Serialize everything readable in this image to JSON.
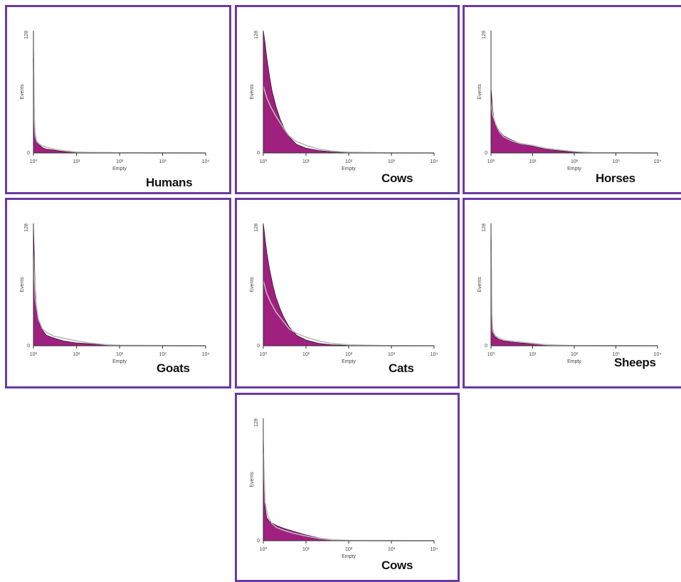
{
  "colors": {
    "border": "#6b3aa0",
    "fill": "#a0207f",
    "overlay": "#b8b8b8",
    "axis": "#333333"
  },
  "chart_data": [
    {
      "type": "area",
      "title": "Humans",
      "xlabel": "Empty",
      "ylabel": "Events",
      "xscale": "log",
      "xlim": [
        1,
        10000
      ],
      "ylim": [
        0,
        128
      ],
      "xticks": [
        "10⁰",
        "10¹",
        "10²",
        "10³",
        "10⁴"
      ],
      "yticks": [
        "0",
        "128"
      ],
      "series": [
        {
          "x": [
            1,
            1.05,
            1.1,
            1.2,
            1.4,
            1.7,
            2,
            3,
            4,
            6,
            10,
            20,
            100,
            10000
          ],
          "y": [
            116,
            40,
            20,
            12,
            8,
            5,
            4,
            3,
            2,
            1.2,
            0.8,
            0.5,
            0.2,
            0
          ]
        },
        {
          "x": [
            1,
            1.05,
            1.1,
            1.2,
            1.4,
            1.7,
            2,
            3,
            4,
            6,
            10,
            20,
            100,
            10000
          ],
          "y": [
            100,
            35,
            18,
            12,
            9,
            7,
            6,
            4,
            3,
            2,
            1,
            0.6,
            0.2,
            0
          ]
        }
      ]
    },
    {
      "type": "area",
      "title": "Cows",
      "xlabel": "Empty",
      "ylabel": "Events",
      "xscale": "log",
      "xlim": [
        1,
        10000
      ],
      "ylim": [
        0,
        128
      ],
      "xticks": [
        "10⁰",
        "10¹",
        "10²",
        "10³",
        "10⁴"
      ],
      "yticks": [
        "0",
        "128"
      ],
      "series": [
        {
          "x": [
            1,
            1.1,
            1.2,
            1.4,
            1.6,
            2,
            2.5,
            3,
            4,
            6,
            10,
            20,
            40,
            100,
            1000,
            10000
          ],
          "y": [
            128,
            115,
            100,
            80,
            65,
            48,
            35,
            27,
            17,
            9,
            5,
            2.5,
            1.2,
            0.5,
            0.1,
            0
          ]
        },
        {
          "x": [
            1,
            1.2,
            1.5,
            2,
            3,
            4,
            6,
            10,
            20,
            40,
            100,
            1000,
            10000
          ],
          "y": [
            70,
            58,
            48,
            38,
            26,
            18,
            12,
            8,
            4,
            2,
            0.8,
            0.1,
            0
          ]
        }
      ]
    },
    {
      "type": "area",
      "title": "Horses",
      "xlabel": "Empty",
      "ylabel": "Events",
      "xscale": "log",
      "xlim": [
        1,
        10000
      ],
      "ylim": [
        0,
        128
      ],
      "xticks": [
        "10⁰",
        "10¹",
        "10²",
        "10³",
        "10⁴"
      ],
      "yticks": [
        "0",
        "128"
      ],
      "series": [
        {
          "x": [
            1,
            1.1,
            1.2,
            1.5,
            2,
            3,
            5,
            10,
            20,
            50,
            100,
            300,
            10000
          ],
          "y": [
            68,
            45,
            32,
            24,
            18,
            14,
            10,
            7,
            4,
            2,
            1,
            0.3,
            0
          ]
        },
        {
          "x": [
            1,
            1.1,
            1.3,
            1.6,
            2,
            3,
            5,
            10,
            20,
            50,
            100,
            300,
            10000
          ],
          "y": [
            55,
            40,
            30,
            22,
            17,
            13,
            10,
            8,
            5,
            3,
            1.5,
            0.4,
            0
          ]
        }
      ]
    },
    {
      "type": "area",
      "title": "Goats",
      "xlabel": "Empty",
      "ylabel": "Events",
      "xscale": "log",
      "xlim": [
        1,
        10000
      ],
      "ylim": [
        0,
        128
      ],
      "xticks": [
        "10⁰",
        "10¹",
        "10²",
        "10³",
        "10⁴"
      ],
      "yticks": [
        "0",
        "128"
      ],
      "series": [
        {
          "x": [
            1,
            1.05,
            1.1,
            1.2,
            1.4,
            1.7,
            2,
            3,
            5,
            10,
            20,
            50,
            100,
            10000
          ],
          "y": [
            128,
            90,
            60,
            35,
            22,
            15,
            11,
            8,
            5,
            3,
            2,
            0.8,
            0.3,
            0
          ]
        },
        {
          "x": [
            1,
            1.1,
            1.3,
            1.6,
            2,
            3,
            5,
            10,
            20,
            50,
            100,
            10000
          ],
          "y": [
            95,
            50,
            28,
            18,
            14,
            10,
            8,
            5,
            3,
            1.2,
            0.5,
            0
          ]
        }
      ]
    },
    {
      "type": "area",
      "title": "Cats",
      "xlabel": "Empty",
      "ylabel": "Events",
      "xscale": "log",
      "xlim": [
        1,
        10000
      ],
      "ylim": [
        0,
        128
      ],
      "xticks": [
        "10⁰",
        "10¹",
        "10²",
        "10³",
        "10⁴"
      ],
      "yticks": [
        "0",
        "128"
      ],
      "series": [
        {
          "x": [
            1,
            1.1,
            1.2,
            1.4,
            1.7,
            2,
            2.5,
            3,
            4,
            6,
            10,
            20,
            40,
            100,
            1000,
            10000
          ],
          "y": [
            128,
            112,
            98,
            80,
            62,
            50,
            38,
            30,
            20,
            11,
            6,
            2.5,
            1,
            0.4,
            0.1,
            0
          ]
        },
        {
          "x": [
            1,
            1.2,
            1.5,
            2,
            3,
            4,
            6,
            10,
            20,
            40,
            100,
            1000,
            10000
          ],
          "y": [
            68,
            55,
            45,
            35,
            25,
            18,
            13,
            9,
            5,
            2.5,
            1,
            0.1,
            0
          ]
        }
      ]
    },
    {
      "type": "area",
      "title": "Sheeps",
      "xlabel": "Empty",
      "ylabel": "Events",
      "xscale": "log",
      "xlim": [
        1,
        10000
      ],
      "ylim": [
        0,
        128
      ],
      "xticks": [
        "10⁰",
        "10¹",
        "10²",
        "10³",
        "10⁴"
      ],
      "yticks": [
        "0",
        "128"
      ],
      "series": [
        {
          "x": [
            1,
            1.05,
            1.1,
            1.2,
            1.5,
            2,
            3,
            5,
            10,
            20,
            50,
            100,
            10000
          ],
          "y": [
            128,
            40,
            18,
            10,
            7,
            5,
            4,
            3,
            2,
            1,
            0.5,
            0.2,
            0
          ]
        },
        {
          "x": [
            1,
            1.05,
            1.1,
            1.3,
            1.6,
            2,
            3,
            5,
            10,
            20,
            50,
            100,
            10000
          ],
          "y": [
            110,
            35,
            15,
            10,
            8,
            6,
            5,
            4,
            2.5,
            1.2,
            0.5,
            0.2,
            0
          ]
        }
      ]
    },
    {
      "type": "area",
      "title": "Cows",
      "xlabel": "Empty",
      "ylabel": "Events",
      "xscale": "log",
      "xlim": [
        1,
        10000
      ],
      "ylim": [
        0,
        128
      ],
      "xticks": [
        "10⁰",
        "10¹",
        "10²",
        "10³",
        "10⁴"
      ],
      "yticks": [
        "0",
        "128"
      ],
      "series": [
        {
          "x": [
            1,
            1.05,
            1.1,
            1.2,
            1.4,
            1.7,
            2,
            3,
            5,
            10,
            20,
            40,
            100,
            10000
          ],
          "y": [
            110,
            55,
            35,
            24,
            20,
            18,
            16,
            13,
            10,
            6,
            3,
            1.2,
            0.3,
            0
          ]
        },
        {
          "x": [
            1,
            1.1,
            1.3,
            1.6,
            2,
            3,
            5,
            10,
            20,
            40,
            100,
            10000
          ],
          "y": [
            95,
            40,
            25,
            18,
            14,
            11,
            8,
            5,
            2.5,
            1,
            0.3,
            0
          ]
        }
      ]
    }
  ]
}
